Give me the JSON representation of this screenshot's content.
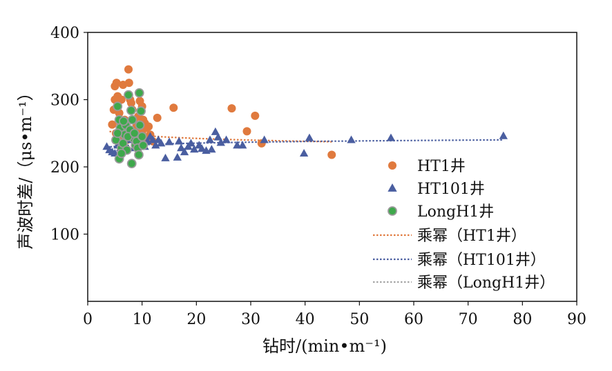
{
  "chart_data": {
    "type": "scatter",
    "xlabel": "钻时/(min•m⁻¹)",
    "ylabel": "声波时差/（μs•m⁻¹）",
    "xlim": [
      0,
      90
    ],
    "ylim": [
      0,
      400
    ],
    "xticks": [
      0,
      10,
      20,
      30,
      40,
      50,
      60,
      70,
      80,
      90
    ],
    "yticks": [
      100,
      200,
      300,
      400
    ],
    "grid": false,
    "legend_position": "right",
    "series": [
      {
        "name": "HT1井",
        "marker": "circle",
        "color": "#e07a3e",
        "points": [
          [
            4.5,
            263
          ],
          [
            4.8,
            285
          ],
          [
            5.0,
            300
          ],
          [
            5.0,
            320
          ],
          [
            5.3,
            325
          ],
          [
            5.5,
            305
          ],
          [
            5.8,
            280
          ],
          [
            6.0,
            265
          ],
          [
            6.2,
            300
          ],
          [
            6.5,
            322
          ],
          [
            6.8,
            270
          ],
          [
            7.0,
            255
          ],
          [
            7.2,
            240
          ],
          [
            7.5,
            345
          ],
          [
            7.6,
            325
          ],
          [
            7.8,
            300
          ],
          [
            8.0,
            295
          ],
          [
            8.2,
            285
          ],
          [
            8.5,
            270
          ],
          [
            8.8,
            255
          ],
          [
            9.0,
            245
          ],
          [
            9.3,
            275
          ],
          [
            9.6,
            298
          ],
          [
            10.0,
            290
          ],
          [
            10.2,
            270
          ],
          [
            10.5,
            265
          ],
          [
            10.8,
            258
          ],
          [
            11.2,
            260
          ],
          [
            11.5,
            248
          ],
          [
            12.8,
            273
          ],
          [
            5.2,
            250
          ],
          [
            6.0,
            245
          ],
          [
            6.5,
            258
          ],
          [
            7.0,
            262
          ],
          [
            8.5,
            240
          ],
          [
            9.0,
            262
          ],
          [
            9.5,
            235
          ],
          [
            10.0,
            250
          ],
          [
            11.0,
            240
          ],
          [
            12.0,
            238
          ],
          [
            15.8,
            288
          ],
          [
            26.5,
            287
          ],
          [
            29.3,
            253
          ],
          [
            30.8,
            276
          ],
          [
            32.0,
            235
          ],
          [
            44.9,
            218
          ]
        ]
      },
      {
        "name": "HT101井",
        "marker": "triangle",
        "color": "#4a5ea0",
        "points": [
          [
            3.5,
            230
          ],
          [
            4.0,
            225
          ],
          [
            4.5,
            222
          ],
          [
            5.0,
            220
          ],
          [
            5.5,
            232
          ],
          [
            6.0,
            228
          ],
          [
            6.5,
            235
          ],
          [
            7.0,
            230
          ],
          [
            7.5,
            240
          ],
          [
            8.0,
            245
          ],
          [
            8.5,
            228
          ],
          [
            9.0,
            232
          ],
          [
            9.5,
            238
          ],
          [
            10.0,
            235
          ],
          [
            10.5,
            230
          ],
          [
            11.0,
            238
          ],
          [
            11.5,
            245
          ],
          [
            12.0,
            240
          ],
          [
            12.5,
            232
          ],
          [
            13.0,
            240
          ],
          [
            13.5,
            235
          ],
          [
            14.3,
            213
          ],
          [
            15.0,
            237
          ],
          [
            16.5,
            214
          ],
          [
            16.8,
            238
          ],
          [
            17.2,
            228
          ],
          [
            17.8,
            222
          ],
          [
            18.5,
            230
          ],
          [
            19.0,
            235
          ],
          [
            19.6,
            226
          ],
          [
            20.5,
            232
          ],
          [
            21.0,
            227
          ],
          [
            21.8,
            224
          ],
          [
            22.5,
            240
          ],
          [
            22.8,
            226
          ],
          [
            23.5,
            252
          ],
          [
            24.0,
            244
          ],
          [
            24.5,
            236
          ],
          [
            25.5,
            240
          ],
          [
            27.5,
            232
          ],
          [
            28.5,
            232
          ],
          [
            32.5,
            240
          ],
          [
            39.8,
            220
          ],
          [
            40.8,
            243
          ],
          [
            48.5,
            240
          ],
          [
            55.8,
            243
          ],
          [
            76.5,
            246
          ]
        ]
      },
      {
        "name": "LongH1井",
        "marker": "circle",
        "color": "#3ea84b",
        "points": [
          [
            5.2,
            240
          ],
          [
            5.5,
            290
          ],
          [
            5.8,
            270
          ],
          [
            6.0,
            258
          ],
          [
            6.2,
            228
          ],
          [
            6.5,
            235
          ],
          [
            6.8,
            248
          ],
          [
            7.0,
            262
          ],
          [
            7.2,
            225
          ],
          [
            7.5,
            307
          ],
          [
            7.8,
            255
          ],
          [
            8.0,
            284
          ],
          [
            8.2,
            270
          ],
          [
            8.5,
            242
          ],
          [
            8.8,
            232
          ],
          [
            9.0,
            238
          ],
          [
            9.2,
            228
          ],
          [
            9.5,
            310
          ],
          [
            9.6,
            262
          ],
          [
            9.8,
            283
          ],
          [
            10.0,
            245
          ],
          [
            10.2,
            232
          ],
          [
            5.8,
            212
          ],
          [
            6.2,
            220
          ],
          [
            8.1,
            205
          ],
          [
            7.4,
            245
          ],
          [
            6.6,
            268
          ],
          [
            8.6,
            250
          ],
          [
            9.4,
            218
          ],
          [
            5.5,
            250
          ]
        ]
      }
    ],
    "fits": [
      {
        "name": "乘幂（HT1井）",
        "color": "#e07a3e",
        "x_range": [
          4,
          45
        ],
        "a": 262.0,
        "b": -0.026
      },
      {
        "name": "乘幂（HT101井）",
        "color": "#4a5ea0",
        "x_range": [
          3.5,
          76.5
        ],
        "a": 225.0,
        "b": 0.015
      },
      {
        "name": "乘幂（LongH1井）",
        "color": "#a6a6a6",
        "x_range": [
          5,
          10.5
        ],
        "a": 248.0,
        "b": 0.0
      }
    ]
  }
}
